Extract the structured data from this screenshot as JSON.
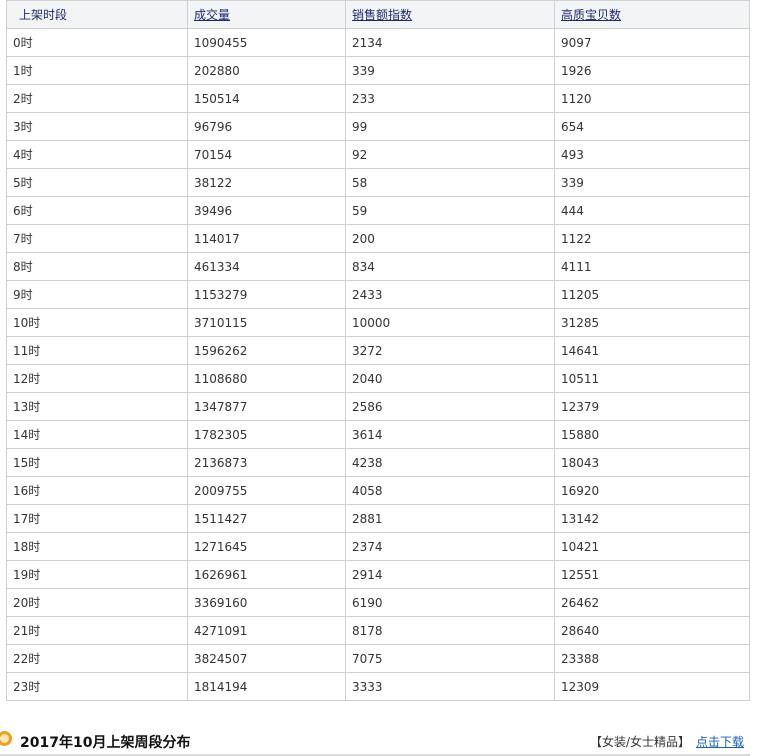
{
  "table": {
    "headers": [
      "上架时段",
      "成交量",
      "销售额指数",
      "高质宝贝数"
    ],
    "rows": [
      [
        "0时",
        "1090455",
        "2134",
        "9097"
      ],
      [
        "1时",
        "202880",
        "339",
        "1926"
      ],
      [
        "2时",
        "150514",
        "233",
        "1120"
      ],
      [
        "3时",
        "96796",
        "99",
        "654"
      ],
      [
        "4时",
        "70154",
        "92",
        "493"
      ],
      [
        "5时",
        "38122",
        "58",
        "339"
      ],
      [
        "6时",
        "39496",
        "59",
        "444"
      ],
      [
        "7时",
        "114017",
        "200",
        "1122"
      ],
      [
        "8时",
        "461334",
        "834",
        "4111"
      ],
      [
        "9时",
        "1153279",
        "2433",
        "11205"
      ],
      [
        "10时",
        "3710115",
        "10000",
        "31285"
      ],
      [
        "11时",
        "1596262",
        "3272",
        "14641"
      ],
      [
        "12时",
        "1108680",
        "2040",
        "10511"
      ],
      [
        "13时",
        "1347877",
        "2586",
        "12379"
      ],
      [
        "14时",
        "1782305",
        "3614",
        "15880"
      ],
      [
        "15时",
        "2136873",
        "4238",
        "18043"
      ],
      [
        "16时",
        "2009755",
        "4058",
        "16920"
      ],
      [
        "17时",
        "1511427",
        "2881",
        "13142"
      ],
      [
        "18时",
        "1271645",
        "2374",
        "10421"
      ],
      [
        "19时",
        "1626961",
        "2914",
        "12551"
      ],
      [
        "20时",
        "3369160",
        "6190",
        "26462"
      ],
      [
        "21时",
        "4271091",
        "8178",
        "28640"
      ],
      [
        "22时",
        "3824507",
        "7075",
        "23388"
      ],
      [
        "23时",
        "1814194",
        "3333",
        "12309"
      ]
    ]
  },
  "section": {
    "title": "2017年10月上架周段分布",
    "category": "【女装/女士精品】",
    "download": "点击下载"
  }
}
